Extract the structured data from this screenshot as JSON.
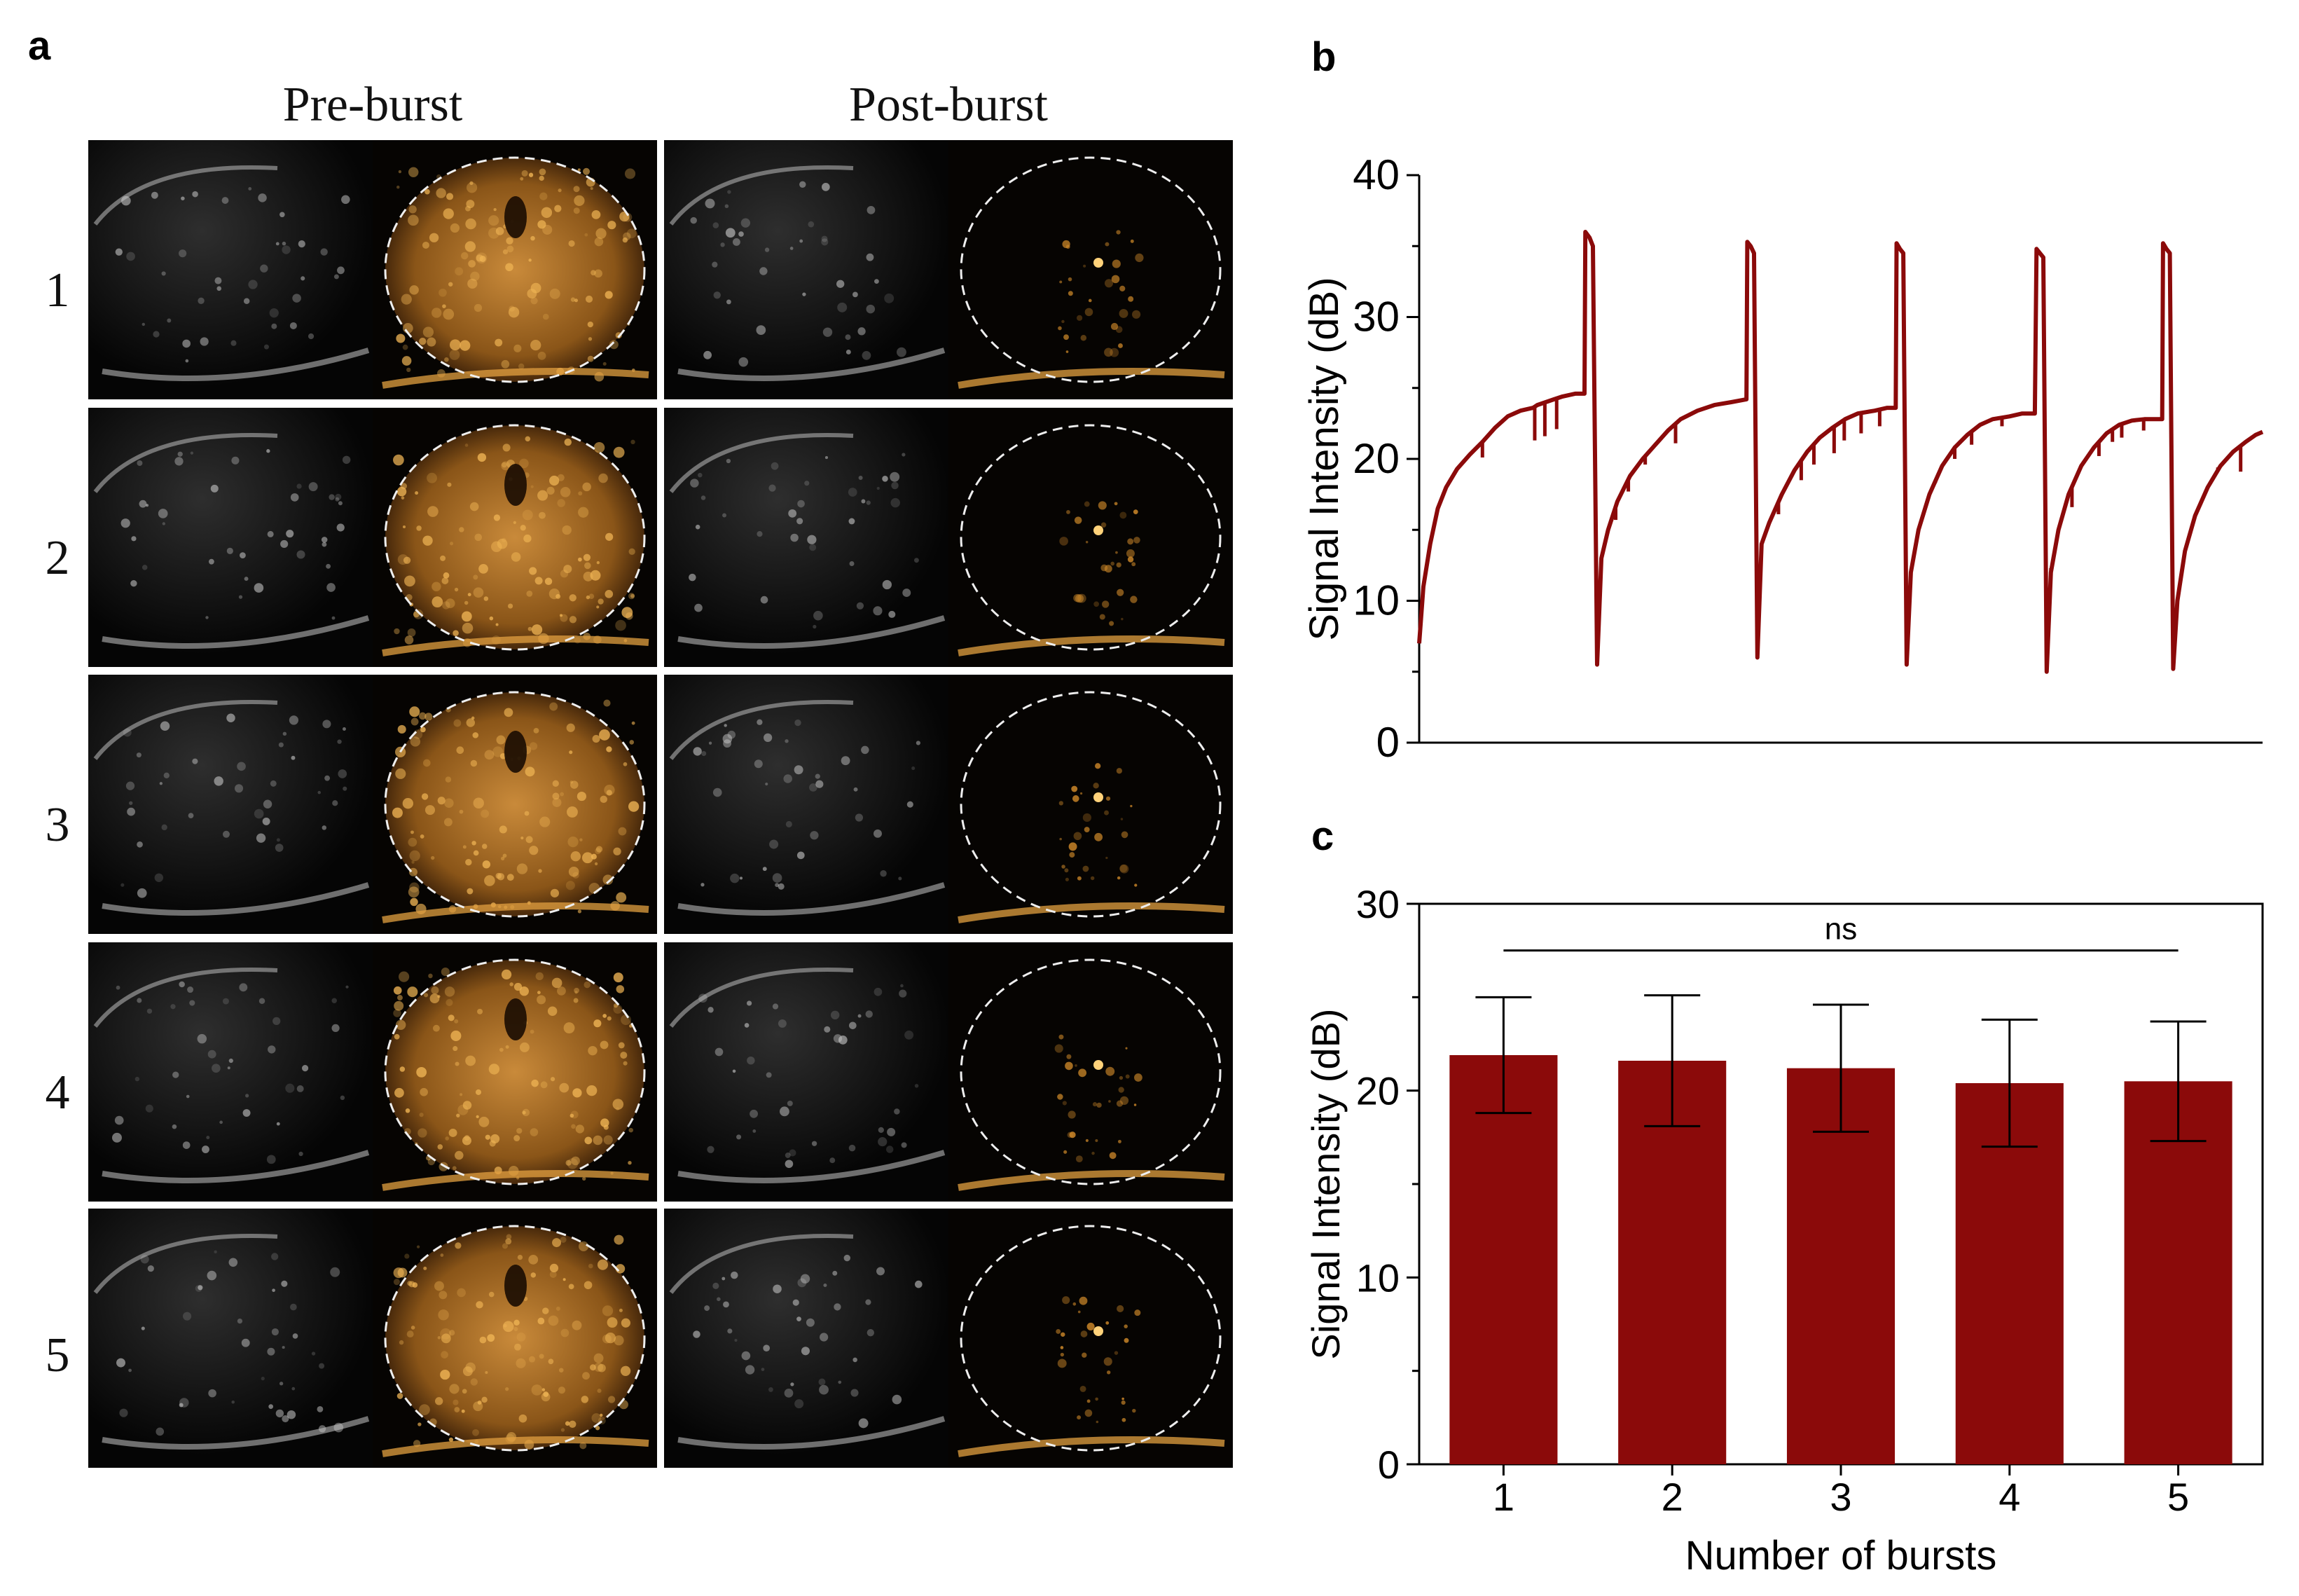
{
  "panel_labels": {
    "a": "a",
    "b": "b",
    "c": "c"
  },
  "panel_a": {
    "column_headers": [
      "Pre-burst",
      "Post-burst"
    ],
    "row_labels": [
      "1",
      "2",
      "3",
      "4",
      "5"
    ]
  },
  "colors": {
    "series": "#8b0a0a",
    "axis": "#000000",
    "contrast": "#d08a2a"
  },
  "chart_data": [
    {
      "id": "b",
      "type": "line",
      "title": "",
      "xlabel": "",
      "ylabel": "Signal Intensity (dB)",
      "ylim": [
        0,
        40
      ],
      "yticks": [
        0,
        10,
        20,
        30,
        40
      ],
      "xlim": [
        0,
        100
      ],
      "series": [
        {
          "name": "Signal Intensity",
          "points": [
            [
              0,
              7
            ],
            [
              0.5,
              11
            ],
            [
              1.3,
              14
            ],
            [
              2.2,
              16.5
            ],
            [
              3.2,
              18
            ],
            [
              4.5,
              19.3
            ],
            [
              6,
              20.3
            ],
            [
              7.5,
              21.2
            ],
            [
              9,
              22.2
            ],
            [
              10.5,
              23
            ],
            [
              12,
              23.4
            ],
            [
              13.5,
              23.6
            ],
            [
              14,
              23.8
            ],
            [
              15,
              24
            ],
            [
              16,
              24.2
            ],
            [
              17,
              24.4
            ],
            [
              18.5,
              24.6
            ],
            [
              19.6,
              24.6
            ],
            [
              19.7,
              36
            ],
            [
              20.2,
              35.6
            ],
            [
              20.6,
              35
            ],
            [
              21.1,
              5.5
            ],
            [
              21.6,
              13
            ],
            [
              22.4,
              15
            ],
            [
              23.5,
              17
            ],
            [
              25,
              18.8
            ],
            [
              26.5,
              20
            ],
            [
              28,
              21
            ],
            [
              29.5,
              22
            ],
            [
              31,
              22.8
            ],
            [
              33,
              23.4
            ],
            [
              35,
              23.8
            ],
            [
              37,
              24
            ],
            [
              38.8,
              24.2
            ],
            [
              38.9,
              35.3
            ],
            [
              39.3,
              35
            ],
            [
              39.7,
              34.5
            ],
            [
              40.1,
              6
            ],
            [
              40.6,
              14
            ],
            [
              41.5,
              15.5
            ],
            [
              43,
              17.5
            ],
            [
              44.5,
              19.2
            ],
            [
              46,
              20.5
            ],
            [
              47.5,
              21.5
            ],
            [
              49,
              22.2
            ],
            [
              50.5,
              22.8
            ],
            [
              52,
              23.2
            ],
            [
              54,
              23.4
            ],
            [
              55.5,
              23.6
            ],
            [
              56.5,
              23.6
            ],
            [
              56.6,
              35.2
            ],
            [
              57,
              34.8
            ],
            [
              57.4,
              34.5
            ],
            [
              57.8,
              5.5
            ],
            [
              58.3,
              12
            ],
            [
              59.2,
              15
            ],
            [
              60.5,
              17.5
            ],
            [
              62,
              19.5
            ],
            [
              63.5,
              20.8
            ],
            [
              65,
              21.7
            ],
            [
              66.5,
              22.4
            ],
            [
              68,
              22.8
            ],
            [
              70,
              23
            ],
            [
              71.5,
              23.2
            ],
            [
              73,
              23.2
            ],
            [
              73.2,
              34.8
            ],
            [
              73.6,
              34.5
            ],
            [
              74,
              34.2
            ],
            [
              74.4,
              5
            ],
            [
              74.9,
              12
            ],
            [
              75.8,
              15
            ],
            [
              77,
              17.5
            ],
            [
              78.5,
              19.5
            ],
            [
              80,
              20.8
            ],
            [
              81.5,
              21.8
            ],
            [
              83,
              22.4
            ],
            [
              84.5,
              22.7
            ],
            [
              86,
              22.8
            ],
            [
              88.1,
              22.8
            ],
            [
              88.2,
              35.2
            ],
            [
              88.6,
              34.8
            ],
            [
              89,
              34.5
            ],
            [
              89.4,
              5.2
            ],
            [
              89.9,
              10
            ],
            [
              90.8,
              13.5
            ],
            [
              92,
              16
            ],
            [
              93.5,
              18
            ],
            [
              95,
              19.5
            ],
            [
              96.5,
              20.5
            ],
            [
              98,
              21.2
            ],
            [
              99.2,
              21.7
            ],
            [
              100,
              21.9
            ]
          ],
          "dips": [
            [
              7.5,
              20.1
            ],
            [
              13.7,
              21.3
            ],
            [
              14.9,
              21.6
            ],
            [
              16.3,
              22.1
            ],
            [
              23.3,
              15.7
            ],
            [
              24.8,
              17.7
            ],
            [
              26.8,
              19.6
            ],
            [
              30.4,
              21.1
            ],
            [
              42.6,
              16.1
            ],
            [
              45.3,
              18.5
            ],
            [
              46.8,
              19.6
            ],
            [
              49.2,
              20.4
            ],
            [
              50.4,
              21.3
            ],
            [
              52.4,
              21.8
            ],
            [
              54.6,
              22.3
            ],
            [
              61.2,
              18.3
            ],
            [
              63.5,
              20
            ],
            [
              65.5,
              21
            ],
            [
              69.1,
              22.3
            ],
            [
              74.9,
              12.3
            ],
            [
              77.4,
              16.6
            ],
            [
              80.6,
              20.2
            ],
            [
              82.2,
              21.2
            ],
            [
              83.3,
              21.5
            ],
            [
              85.9,
              22
            ],
            [
              94.7,
              19.4
            ],
            [
              97.4,
              19.1
            ]
          ]
        }
      ]
    },
    {
      "id": "c",
      "type": "bar",
      "title": "",
      "xlabel": "Number of bursts",
      "ylabel": "Signal Intensity (dB)",
      "ylim": [
        0,
        30
      ],
      "yticks": [
        0,
        10,
        20,
        30
      ],
      "categories": [
        "1",
        "2",
        "3",
        "4",
        "5"
      ],
      "values": [
        21.9,
        21.6,
        21.2,
        20.4,
        20.5
      ],
      "errors": [
        3.1,
        3.5,
        3.4,
        3.4,
        3.2
      ],
      "annotation": {
        "text": "ns",
        "from": 0,
        "to": 4,
        "y": 27.5
      }
    }
  ]
}
